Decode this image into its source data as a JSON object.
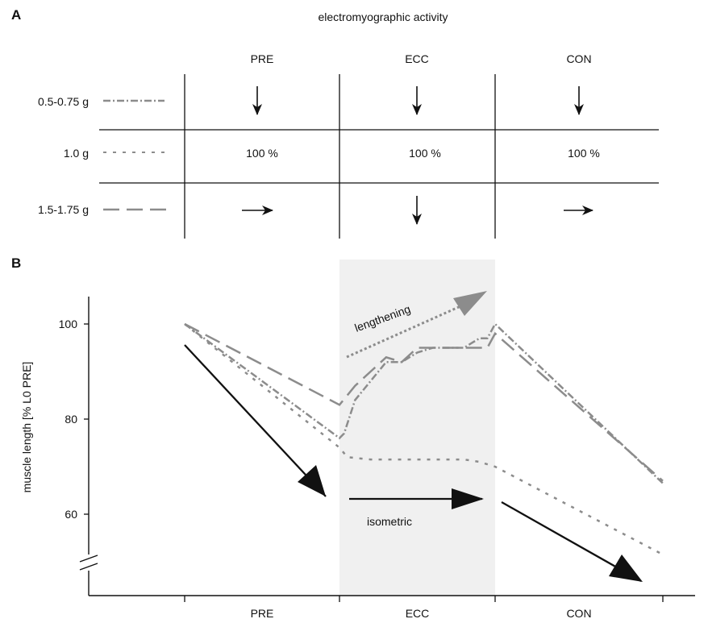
{
  "panel_a": {
    "label": "A",
    "title": "electromyographic activity",
    "columns": [
      "PRE",
      "ECC",
      "CON"
    ],
    "rows": [
      {
        "label": "0.5-0.75 g",
        "line_style": "dash-dot",
        "cells": [
          "down",
          "down",
          "down"
        ]
      },
      {
        "label": "1.0 g",
        "line_style": "dotted",
        "cells": [
          "100 %",
          "100 %",
          "100 %"
        ]
      },
      {
        "label": "1.5-1.75 g",
        "line_style": "long-dash",
        "cells": [
          "right",
          "down",
          "right"
        ]
      }
    ]
  },
  "chart_data": {
    "type": "line",
    "panel_label": "B",
    "title": "",
    "xlabel": "",
    "ylabel": "muscle length [% L0 PRE]",
    "x_categories": [
      "PRE",
      "ECC",
      "CON"
    ],
    "x_range": [
      0,
      3
    ],
    "ylim": [
      48,
      110
    ],
    "yticks": [
      60,
      80,
      100
    ],
    "axis_break": true,
    "shaded_phase": "ECC",
    "shade_color": "#f0f0f0",
    "line_color": "#8c8c8c",
    "series": [
      {
        "style": "dash-dot",
        "x": [
          0,
          1,
          1.03,
          1.1,
          1.2,
          1.3,
          1.4,
          1.5,
          1.6,
          1.7,
          1.8,
          1.85,
          1.9,
          1.95,
          2.0,
          3.0
        ],
        "y": [
          100,
          76,
          77,
          84,
          88,
          92,
          92,
          94,
          95,
          95,
          95,
          96,
          97,
          97,
          100,
          66.5
        ]
      },
      {
        "style": "dotted",
        "x": [
          0,
          1,
          1.05,
          1.2,
          1.4,
          1.5,
          1.6,
          1.7,
          1.8,
          1.9,
          2.0,
          3.0
        ],
        "y": [
          100,
          74,
          72,
          71.5,
          71.5,
          71.5,
          71.5,
          71.5,
          71.5,
          71,
          70,
          51.5
        ]
      },
      {
        "style": "long-dash",
        "x": [
          0,
          1,
          1.05,
          1.1,
          1.2,
          1.3,
          1.4,
          1.5,
          1.6,
          1.7,
          1.8,
          1.9,
          1.95,
          2.0,
          3.0
        ],
        "y": [
          100,
          83,
          85,
          87,
          90,
          93,
          92,
          95,
          95,
          95,
          95,
          95,
          95,
          98,
          67
        ]
      }
    ],
    "annotations": {
      "lengthening": "lengthening",
      "isometric": "isometric"
    }
  }
}
